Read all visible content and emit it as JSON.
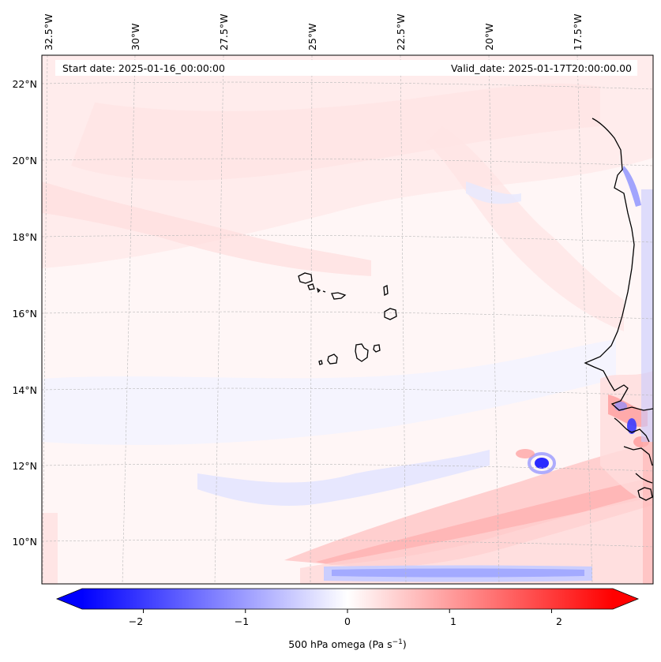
{
  "header": {
    "start_date": "Start date: 2025-01-16_00:00:00",
    "valid_date": "Valid_date: 2025-01-17T20:00:00.00"
  },
  "map": {
    "lon_ticks": [
      "32.5°W",
      "30°W",
      "27.5°W",
      "25°W",
      "22.5°W",
      "20°W",
      "17.5°W"
    ],
    "lat_ticks": [
      "22°N",
      "20°N",
      "18°N",
      "16°N",
      "14°N",
      "12°N",
      "10°N"
    ]
  },
  "colorbar": {
    "ticks": [
      "−2",
      "−1",
      "0",
      "1",
      "2"
    ],
    "label_main": "500 hPa omega (Pa s",
    "label_sup": "−1",
    "label_end": ")",
    "vmin": -2.6,
    "vmax": 2.6,
    "colors": {
      "negative": "#0000ff",
      "zero": "#ffffff",
      "positive": "#ff0000"
    }
  }
}
